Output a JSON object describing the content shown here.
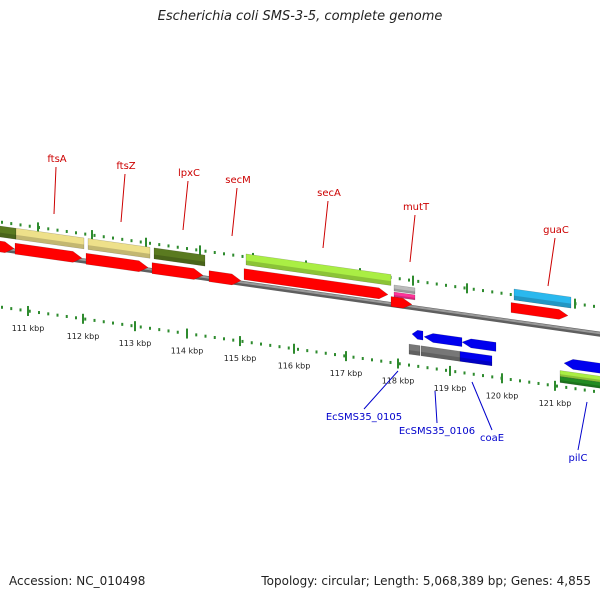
{
  "title": "Escherichia coli SMS-3-5, complete genome",
  "footer": {
    "accession": "Accession: NC_010498",
    "summary": "Topology: circular; Length: 5,068,389 bp; Genes: 4,855"
  },
  "colors": {
    "forward_label": "#cc0000",
    "reverse_label": "#0000cc",
    "backbone": "#808080",
    "ticks": "#2e8b2e",
    "cds_red": "#ff0000",
    "cds_blue": "#0000ee",
    "khaki": "#eee08a",
    "olive": "#5a7a20",
    "lime": "#aaee44",
    "sky": "#2ab8ee",
    "gray": "#777777",
    "pink": "#ff3399",
    "silver": "#bbbbbb",
    "green": "#228b22"
  },
  "scale": {
    "ticks": [
      {
        "label": "111 kbp"
      },
      {
        "label": "112 kbp"
      },
      {
        "label": "113 kbp"
      },
      {
        "label": "114 kbp"
      },
      {
        "label": "115 kbp"
      },
      {
        "label": "116 kbp"
      },
      {
        "label": "117 kbp"
      },
      {
        "label": "118 kbp"
      },
      {
        "label": "119 kbp"
      },
      {
        "label": "120 kbp"
      },
      {
        "label": "121 kbp"
      }
    ]
  },
  "genes": {
    "forward_labels": [
      {
        "name": "ftsA"
      },
      {
        "name": "ftsZ"
      },
      {
        "name": "lpxC"
      },
      {
        "name": "secM"
      },
      {
        "name": "secA"
      },
      {
        "name": "mutT"
      },
      {
        "name": "guaC"
      }
    ],
    "reverse_labels": [
      {
        "name": "EcSMS35_0105"
      },
      {
        "name": "EcSMS35_0106"
      },
      {
        "name": "coaE"
      },
      {
        "name": "pilC"
      }
    ]
  }
}
